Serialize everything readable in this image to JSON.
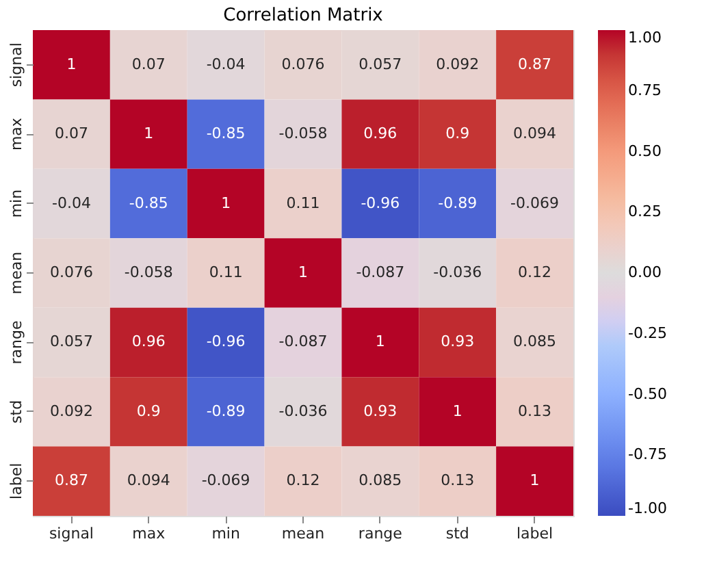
{
  "chart_data": {
    "type": "heatmap",
    "title": "Correlation Matrix",
    "categories": [
      "signal",
      "max",
      "min",
      "mean",
      "range",
      "std",
      "label"
    ],
    "y_categories": [
      "signal",
      "max",
      "min",
      "mean",
      "range",
      "std",
      "label"
    ],
    "cells": [
      [
        1,
        0.07,
        -0.04,
        0.076,
        0.057,
        0.092,
        0.87
      ],
      [
        0.07,
        1,
        -0.85,
        -0.058,
        0.96,
        0.9,
        0.094
      ],
      [
        -0.04,
        -0.85,
        1,
        0.11,
        -0.96,
        -0.89,
        -0.069
      ],
      [
        0.076,
        -0.058,
        0.11,
        1,
        -0.087,
        -0.036,
        0.12
      ],
      [
        0.057,
        0.96,
        -0.96,
        -0.087,
        1,
        0.93,
        0.085
      ],
      [
        0.092,
        0.9,
        -0.89,
        -0.036,
        0.93,
        1,
        0.13
      ],
      [
        0.87,
        0.094,
        -0.069,
        0.12,
        0.085,
        0.13,
        1
      ]
    ],
    "data_labels": true,
    "clim": [
      -1,
      1
    ],
    "cticks": [
      {
        "value": -1,
        "label": "-1.00"
      },
      {
        "value": -0.75,
        "label": "-0.75"
      },
      {
        "value": -0.5,
        "label": "-0.50"
      },
      {
        "value": -0.25,
        "label": "-0.25"
      },
      {
        "value": 0,
        "label": "0.00"
      },
      {
        "value": 0.25,
        "label": "0.25"
      },
      {
        "value": 0.5,
        "label": "0.50"
      },
      {
        "value": 0.75,
        "label": "0.75"
      },
      {
        "value": 1,
        "label": "1.00"
      }
    ]
  }
}
